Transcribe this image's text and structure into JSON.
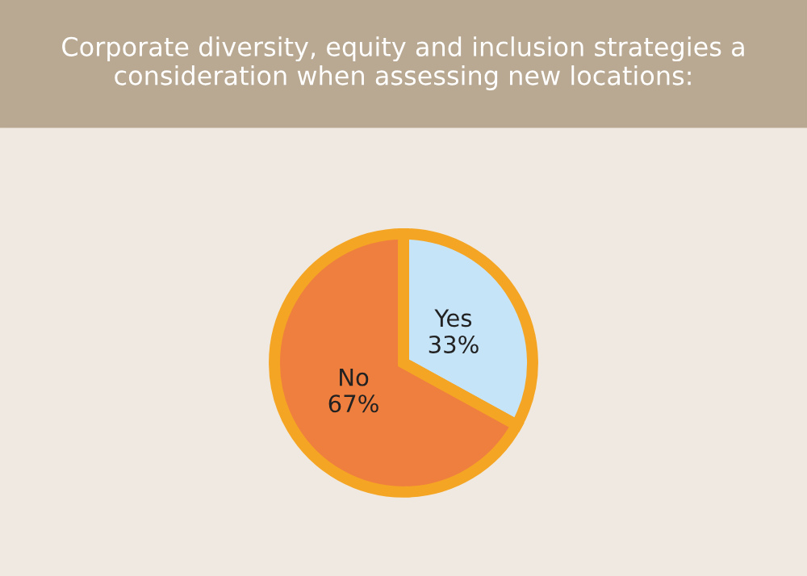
{
  "chart_data": {
    "type": "pie",
    "title": "Corporate diversity, equity and inclusion strategies a consideration when assessing new locations:",
    "categories": [
      "Yes",
      "No"
    ],
    "values": [
      33,
      67
    ],
    "colors": [
      "#c6e4f8",
      "#ef7f3f"
    ],
    "value_labels": [
      "33%",
      "67%"
    ]
  }
}
